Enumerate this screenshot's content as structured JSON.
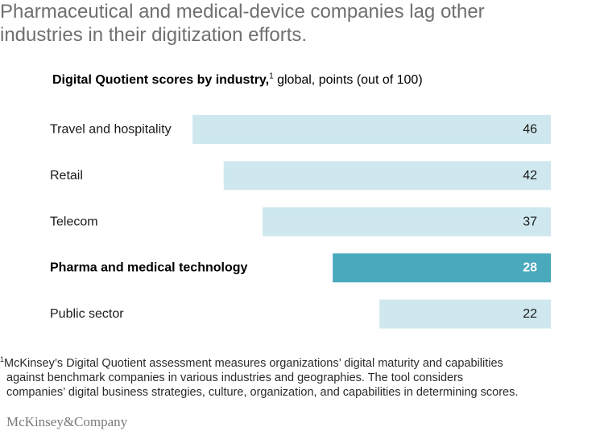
{
  "headline": {
    "line1": "Pharmaceutical and medical-device companies lag other",
    "line2": "industries in their digitization efforts."
  },
  "chart_data": {
    "type": "bar",
    "orientation": "horizontal",
    "title": "Digital Quotient scores by industry,",
    "title_superscript": "1",
    "subtitle": "global, points (out of 100)",
    "categories": [
      "Travel and hospitality",
      "Retail",
      "Telecom",
      "Pharma and medical technology",
      "Public sector"
    ],
    "values": [
      46,
      42,
      37,
      28,
      22
    ],
    "highlighted": [
      "Pharma and medical technology"
    ],
    "xlim": [
      0,
      100
    ],
    "bar_alignment": "right",
    "grid": false,
    "colors": {
      "bar": "#cfe8ef",
      "highlight": "#4aa9bd"
    }
  },
  "footnote": {
    "marker": "1",
    "line1": "McKinsey’s Digital Quotient assessment measures organizations’ digital maturity and capabilities",
    "line2": "against benchmark companies in various industries and geographies. The tool considers",
    "line3": "companies’ digital business strategies, culture, organization, and capabilities in determining scores."
  },
  "brand": "McKinsey&Company"
}
